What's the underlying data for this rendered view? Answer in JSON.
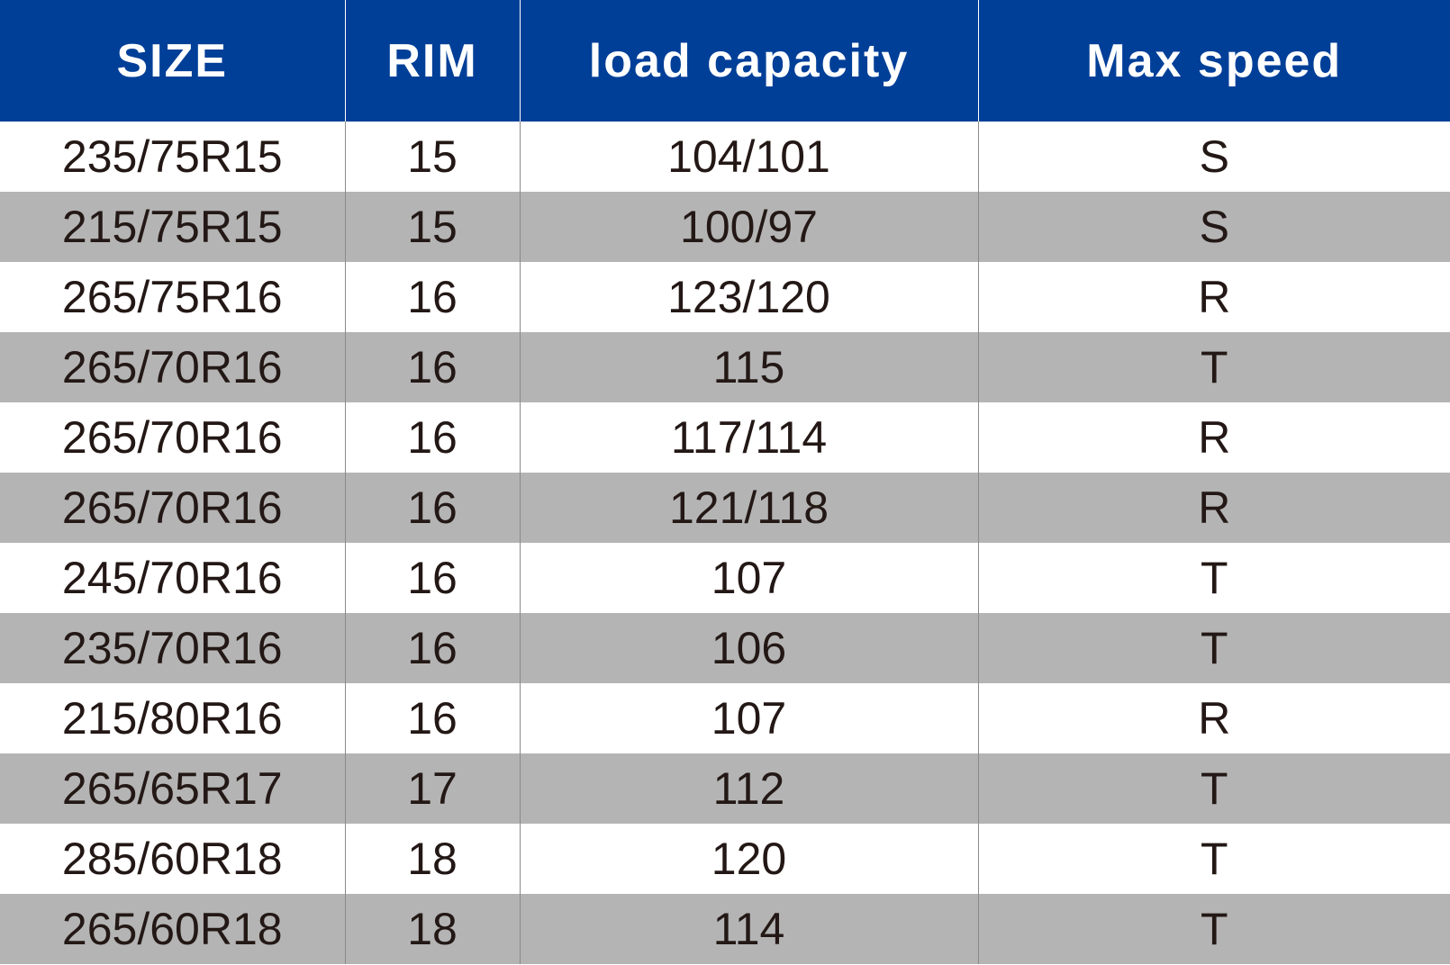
{
  "table": {
    "header": [
      "SIZE",
      "RIM",
      "load capacity",
      "Max speed"
    ],
    "rows": [
      [
        "235/75R15",
        "15",
        "104/101",
        "S"
      ],
      [
        "215/75R15",
        "15",
        "100/97",
        "S"
      ],
      [
        "265/75R16",
        "16",
        "123/120",
        "R"
      ],
      [
        "265/70R16",
        "16",
        "115",
        "T"
      ],
      [
        "265/70R16",
        "16",
        "117/114",
        "R"
      ],
      [
        "265/70R16",
        "16",
        "121/118",
        "R"
      ],
      [
        "245/70R16",
        "16",
        "107",
        "T"
      ],
      [
        "235/70R16",
        "16",
        "106",
        "T"
      ],
      [
        "215/80R16",
        "16",
        "107",
        "R"
      ],
      [
        "265/65R17",
        "17",
        "112",
        "T"
      ],
      [
        "285/60R18",
        "18",
        "120",
        "T"
      ],
      [
        "265/60R18",
        "18",
        "114",
        "T"
      ]
    ]
  }
}
